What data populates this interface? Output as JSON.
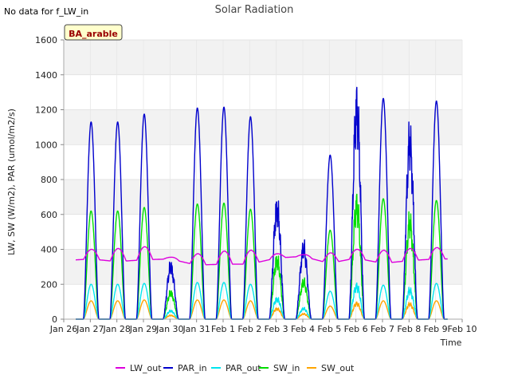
{
  "chart_data": {
    "type": "line",
    "title": "Solar Radiation",
    "note": "No data for f_LW_in",
    "site_badge": "BA_arable",
    "xlabel": "Time",
    "ylabel": "LW, SW (W/m2), PAR (umol/m2/s)",
    "ylim": [
      0,
      1600
    ],
    "yticks": [
      0,
      200,
      400,
      600,
      800,
      1000,
      1200,
      1400,
      1600
    ],
    "xlim": [
      0,
      15
    ],
    "xticks": [
      {
        "x": 0,
        "label": "Jan 26"
      },
      {
        "x": 1,
        "label": "Jan 27"
      },
      {
        "x": 2,
        "label": "Jan 28"
      },
      {
        "x": 3,
        "label": "Jan 29"
      },
      {
        "x": 4,
        "label": "Jan 30"
      },
      {
        "x": 5,
        "label": "Jan 31"
      },
      {
        "x": 6,
        "label": "Feb 1"
      },
      {
        "x": 7,
        "label": "Feb 2"
      },
      {
        "x": 8,
        "label": "Feb 3"
      },
      {
        "x": 9,
        "label": "Feb 4"
      },
      {
        "x": 10,
        "label": "Feb 5"
      },
      {
        "x": 11,
        "label": "Feb 6"
      },
      {
        "x": 12,
        "label": "Feb 7"
      },
      {
        "x": 13,
        "label": "Feb 8"
      },
      {
        "x": 14,
        "label": "Feb 9"
      },
      {
        "x": 15,
        "label": "Feb 10"
      }
    ],
    "grid": true,
    "legend_position": "bottom",
    "data_start": 0.45,
    "data_end": 14.45,
    "daily_peaks": {
      "days": [
        1,
        2,
        3,
        4,
        5,
        6,
        7,
        8,
        9,
        10,
        11,
        12,
        13,
        14
      ],
      "PAR_in": [
        1130,
        1130,
        1175,
        350,
        1210,
        1215,
        1160,
        740,
        470,
        940,
        1410,
        1265,
        1175,
        1250
      ],
      "SW_in": [
        620,
        620,
        640,
        175,
        660,
        665,
        630,
        395,
        245,
        510,
        760,
        690,
        640,
        680
      ],
      "PAR_out": [
        200,
        200,
        205,
        55,
        210,
        210,
        200,
        135,
        70,
        160,
        220,
        195,
        190,
        205
      ],
      "SW_out": [
        105,
        105,
        110,
        25,
        110,
        110,
        105,
        70,
        35,
        75,
        105,
        105,
        100,
        105
      ],
      "LW_out": [
        400,
        405,
        415,
        355,
        375,
        390,
        395,
        375,
        370,
        380,
        400,
        395,
        405,
        410
      ]
    },
    "LW_out_night": [
      335,
      345,
      330,
      340,
      345,
      310,
      315,
      315,
      350,
      360,
      320,
      350,
      320,
      335,
      345
    ],
    "series": [
      {
        "name": "LW_out",
        "color": "#dd00dd"
      },
      {
        "name": "PAR_in",
        "color": "#0000cc"
      },
      {
        "name": "PAR_out",
        "color": "#00e5ee"
      },
      {
        "name": "SW_in",
        "color": "#00dd00"
      },
      {
        "name": "SW_out",
        "color": "#ffa500"
      }
    ]
  }
}
